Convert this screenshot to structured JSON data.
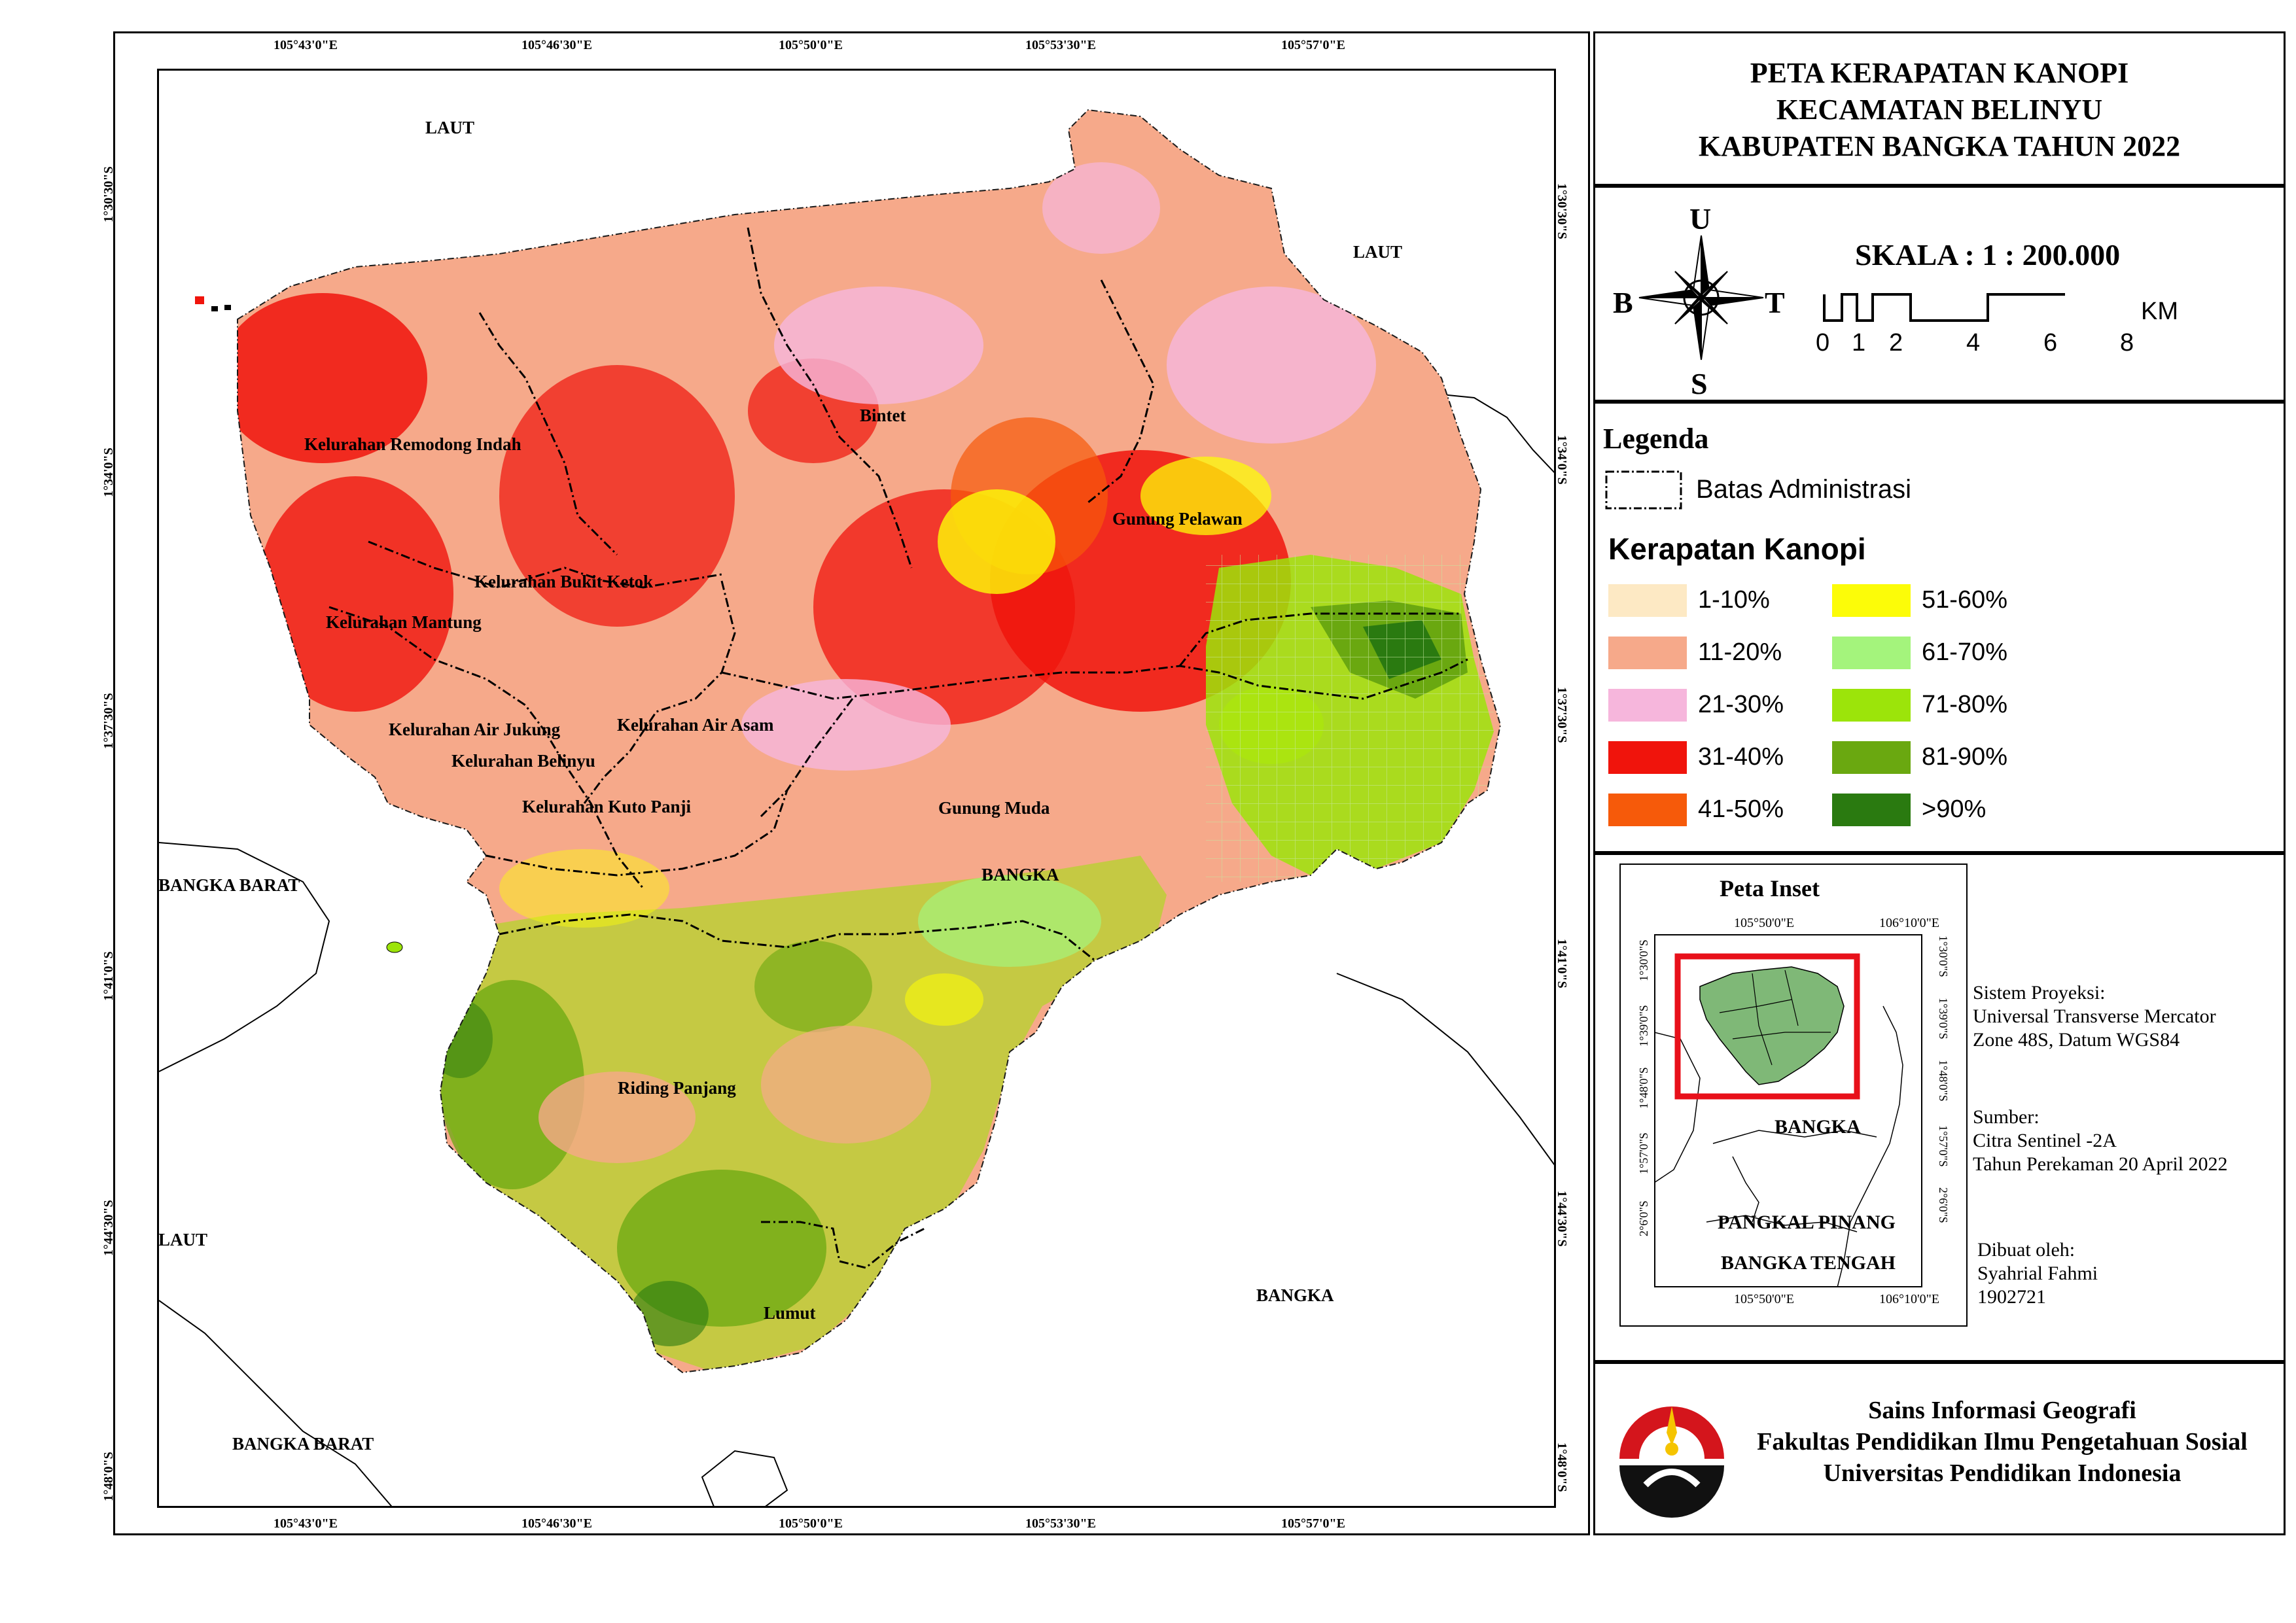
{
  "title": {
    "line1": "PETA KERAPATAN KANOPI",
    "line2": "KECAMATAN BELINYU",
    "line3": "KABUPATEN BANGKA TAHUN 2022"
  },
  "compass": {
    "n": "U",
    "s": "S",
    "e": "T",
    "w": "B"
  },
  "scale": {
    "label": "SKALA : 1 : 200.000",
    "ticks": [
      "0",
      "1",
      "2",
      "4",
      "6",
      "8"
    ],
    "unit": "KM"
  },
  "legend": {
    "heading": "Legenda",
    "boundary_label": "Batas Administrasi",
    "density_heading": "Kerapatan Kanopi",
    "classes": [
      {
        "label": "1-10%",
        "color": "#fde9c4"
      },
      {
        "label": "11-20%",
        "color": "#f6a98a"
      },
      {
        "label": "21-30%",
        "color": "#f6b6dc"
      },
      {
        "label": "31-40%",
        "color": "#f0140c"
      },
      {
        "label": "41-50%",
        "color": "#f65a0a"
      },
      {
        "label": "51-60%",
        "color": "#fcfc08"
      },
      {
        "label": "61-70%",
        "color": "#a4f47c"
      },
      {
        "label": "71-80%",
        "color": "#9ce40a"
      },
      {
        "label": "81-90%",
        "color": "#6aa810"
      },
      {
        "label": ">90%",
        "color": "#2a7a10"
      }
    ]
  },
  "coords": {
    "top": [
      "105°43'0\"E",
      "105°46'30\"E",
      "105°50'0\"E",
      "105°53'30\"E",
      "105°57'0\"E"
    ],
    "bottom": [
      "105°43'0\"E",
      "105°46'30\"E",
      "105°50'0\"E",
      "105°53'30\"E",
      "105°57'0\"E"
    ],
    "left": [
      "1°30'30\"S",
      "1°34'0\"S",
      "1°37'30\"S",
      "1°41'0\"S",
      "1°44'30\"S",
      "1°48'0\"S"
    ],
    "right": [
      "1°30'30\"S",
      "1°34'0\"S",
      "1°37'30\"S",
      "1°41'0\"S",
      "1°44'30\"S",
      "1°48'0\"S"
    ]
  },
  "map_labels": {
    "laut_nw": "LAUT",
    "laut_ne": "LAUT",
    "laut_sw": "LAUT",
    "bangka_barat_w": "BANGKA BARAT",
    "bangka_barat_s": "BANGKA BARAT",
    "bangka_se": "BANGKA",
    "bangka_center": "BANGKA",
    "kel_remodong": "Kelurahan Remodong Indah",
    "kel_bukit_ketok": "Kelurahan Bukit Ketok",
    "kel_mantung": "Kelurahan Mantung",
    "kel_air_jukung": "Kelurahan Air Jukung",
    "kel_belinyu": "Kelurahan Belinyu",
    "kel_air_asam": "Kelurahan Air Asam",
    "kel_kuto_panji": "Kelurahan Kuto Panji",
    "bintet": "Bintet",
    "gunung_pelawan": "Gunung Pelawan",
    "gunung_muda": "Gunung Muda",
    "riding_panjang": "Riding Panjang",
    "lumut": "Lumut"
  },
  "inset": {
    "title": "Peta Inset",
    "coord_top": [
      "105°50'0\"E",
      "106°10'0\"E"
    ],
    "coord_bottom": [
      "105°50'0\"E",
      "106°10'0\"E"
    ],
    "coord_left": [
      "1°30'0\"S",
      "1°39'0\"S",
      "1°48'0\"S",
      "1°57'0\"S",
      "2°6'0\"S"
    ],
    "coord_right": [
      "1°30'0\"S",
      "1°39'0\"S",
      "1°48'0\"S",
      "1°57'0\"S",
      "2°6'0\"S"
    ],
    "label_bangka": "BANGKA",
    "label_pangkal_pinang": "PANGKAL PINANG",
    "label_bangka_tengah": "BANGKA TENGAH"
  },
  "meta": {
    "projection_label": "Sistem Proyeksi:",
    "projection_line1": "Universal Transverse Mercator",
    "projection_line2": "Zone 48S, Datum WGS84",
    "source_label": "Sumber:",
    "source_line1": "Citra Sentinel -2A",
    "source_line2": "Tahun Perekaman 20 April 2022",
    "author_label": "Dibuat oleh:",
    "author_name": "Syahrial Fahmi",
    "author_id": "1902721"
  },
  "institution": {
    "line1": "Sains Informasi Geografi",
    "line2": "Fakultas Pendidikan Ilmu Pengetahuan Sosial",
    "line3": "Universitas Pendidikan Indonesia"
  }
}
